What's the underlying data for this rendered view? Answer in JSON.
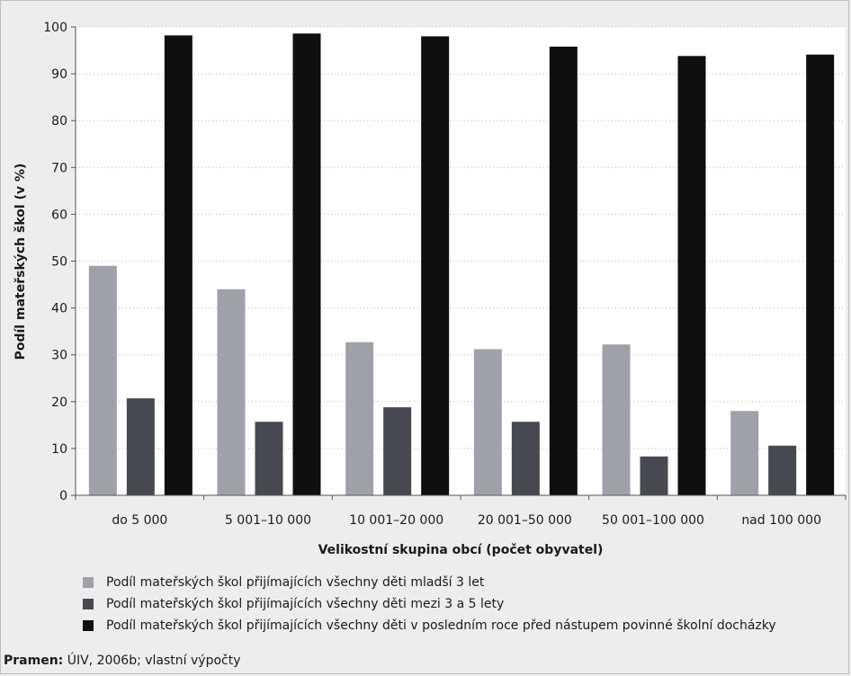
{
  "chart_data": {
    "type": "bar",
    "xlabel": "Velikostní skupina obcí (počet obyvatel)",
    "ylabel": "Podíl mateřských škol (v %)",
    "ylim": [
      0,
      100
    ],
    "yticks": [
      0,
      10,
      20,
      30,
      40,
      50,
      60,
      70,
      80,
      90,
      100
    ],
    "grid": "horizontal dotted",
    "legend_position": "bottom",
    "categories": [
      "do 5 000",
      "5 001–10 000",
      "10 001–20 000",
      "20 001–50 000",
      "50 001–100 000",
      "nad 100 000"
    ],
    "series": [
      {
        "name": "Podíl mateřských škol přijímajících všechny děti mladší 3 let",
        "color": "#9ea2a8",
        "values": [
          49,
          44,
          32.7,
          31.2,
          32.2,
          18
        ]
      },
      {
        "name": "Podíl mateřských škol přijímajících všechny děti mezi 3 a 5 lety",
        "color": "#464a50",
        "values": [
          20.7,
          15.7,
          18.8,
          15.7,
          8.3,
          10.6
        ]
      },
      {
        "name": "Podíl mateřských škol přijímajících všechny děti v posledním roce před nástupem povinné školní docházky",
        "color": "#0f0f0f",
        "values": [
          98.2,
          98.6,
          98,
          95.8,
          93.8,
          94.1
        ]
      }
    ]
  },
  "source": {
    "label": "Pramen:",
    "text": " ÚIV, 2006b; vlastní výpočty"
  }
}
